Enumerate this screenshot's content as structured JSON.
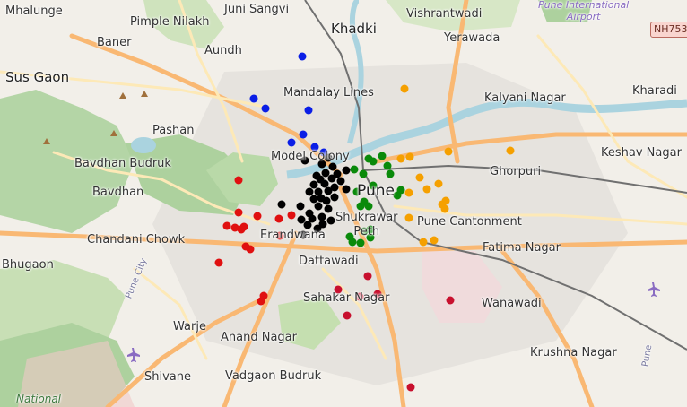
{
  "map": {
    "labels": {
      "mhalunge": "Mhalunge",
      "pimple_nilakh": "Pimple Nilakh",
      "juni_sangvi": "Juni Sangvi",
      "vishrantwadi": "Vishrantwadi",
      "pune_airport": "Pune International\nAirport",
      "baner": "Baner",
      "aundh": "Aundh",
      "khadki": "Khadki",
      "yerawada": "Yerawada",
      "sus_gaon": "Sus Gaon",
      "mandalay_lines": "Mandalay Lines",
      "kalyani_nagar": "Kalyani Nagar",
      "kharadi": "Kharadi",
      "pashan": "Pashan",
      "model_colony": "Model Colony",
      "ghorpuri": "Ghorpuri",
      "keshav_nagar": "Keshav Nagar",
      "bavdhan_budruk": "Bavdhan Budruk",
      "bavdhan": "Bavdhan",
      "pune": "Pune",
      "shukrawar_peth": "Shukrawar\nPeth",
      "pune_cantonment": "Pune Cantonment",
      "chandani_chowk": "Chandani Chowk",
      "erandwana": "Erandwana",
      "fatima_nagar": "Fatima Nagar",
      "bhugaon": "Bhugaon",
      "dattawadi": "Dattawadi",
      "sahakar_nagar": "Sahakar Nagar",
      "wanawadi": "Wanawadi",
      "warje": "Warje",
      "anand_nagar": "Anand Nagar",
      "krushna_nagar": "Krushna Nagar",
      "shivane": "Shivane",
      "vadgaon_budruk": "Vadgaon Budruk",
      "national": "National",
      "pune_city_road": "Pune City",
      "pune_road_right": "Pune"
    },
    "shields": {
      "nh": "NH753"
    },
    "colors": {
      "land": "#f2efe9",
      "park": "#add19e",
      "forest": "#8bc17a",
      "water": "#aad3df",
      "primary_road": "#fcd6a4",
      "secondary_road": "#f7fabf",
      "railway": "#707070",
      "urban": "#e0dfdf",
      "cluster_blue": "#0a1ee6",
      "cluster_black": "#000000",
      "cluster_green": "#0a8a0a",
      "cluster_orange": "#f5a000",
      "cluster_red": "#e01010",
      "cluster_crimson": "#c8102e"
    },
    "icons": [
      "airport-icon",
      "peak-icon",
      "place-dot-icon"
    ]
  },
  "chart_data": {
    "type": "scatter",
    "xlabel": "",
    "ylabel": "",
    "series": [
      {
        "color": "#0a1ee6",
        "points": [
          [
            337,
            63
          ],
          [
            283,
            110
          ],
          [
            296,
            121
          ],
          [
            344,
            123
          ],
          [
            338,
            150
          ],
          [
            325,
            159
          ],
          [
            351,
            164
          ],
          [
            361,
            170
          ]
        ]
      },
      {
        "color": "#000000",
        "points": [
          [
            366,
            176
          ],
          [
            340,
            179
          ],
          [
            359,
            183
          ],
          [
            371,
            186
          ],
          [
            386,
            190
          ],
          [
            376,
            194
          ],
          [
            363,
            193
          ],
          [
            353,
            196
          ],
          [
            357,
            200
          ],
          [
            370,
            199
          ],
          [
            380,
            202
          ],
          [
            350,
            206
          ],
          [
            362,
            205
          ],
          [
            373,
            209
          ],
          [
            345,
            214
          ],
          [
            355,
            214
          ],
          [
            366,
            213
          ],
          [
            386,
            211
          ],
          [
            350,
            222
          ],
          [
            358,
            221
          ],
          [
            364,
            224
          ],
          [
            373,
            220
          ],
          [
            314,
            228
          ],
          [
            335,
            230
          ],
          [
            355,
            230
          ],
          [
            366,
            233
          ],
          [
            345,
            238
          ],
          [
            359,
            242
          ],
          [
            336,
            245
          ],
          [
            348,
            244
          ],
          [
            369,
            246
          ],
          [
            343,
            251
          ],
          [
            360,
            250
          ],
          [
            354,
            255
          ],
          [
            338,
            262
          ]
        ]
      },
      {
        "color": "#0a8a0a",
        "points": [
          [
            395,
            189
          ],
          [
            411,
            177
          ],
          [
            416,
            180
          ],
          [
            426,
            174
          ],
          [
            405,
            194
          ],
          [
            398,
            214
          ],
          [
            416,
            207
          ],
          [
            406,
            225
          ],
          [
            411,
            230
          ],
          [
            402,
            230
          ],
          [
            435,
            194
          ],
          [
            447,
            212
          ],
          [
            443,
            218
          ],
          [
            390,
            264
          ],
          [
            406,
            258
          ],
          [
            413,
            256
          ],
          [
            393,
            270
          ],
          [
            402,
            271
          ],
          [
            413,
            265
          ],
          [
            432,
            185
          ]
        ]
      },
      {
        "color": "#f5a000",
        "points": [
          [
            451,
            99
          ],
          [
            447,
            177
          ],
          [
            457,
            175
          ],
          [
            500,
            169
          ],
          [
            569,
            168
          ],
          [
            468,
            198
          ],
          [
            489,
            205
          ],
          [
            456,
            215
          ],
          [
            476,
            211
          ],
          [
            497,
            224
          ],
          [
            493,
            228
          ],
          [
            496,
            233
          ],
          [
            456,
            243
          ],
          [
            472,
            270
          ],
          [
            484,
            268
          ]
        ]
      },
      {
        "color": "#e01010",
        "points": [
          [
            266,
            201
          ],
          [
            266,
            237
          ],
          [
            287,
            241
          ],
          [
            253,
            252
          ],
          [
            262,
            254
          ],
          [
            269,
            256
          ],
          [
            272,
            253
          ],
          [
            311,
            244
          ],
          [
            325,
            240
          ],
          [
            312,
            263
          ],
          [
            274,
            275
          ],
          [
            279,
            278
          ],
          [
            244,
            293
          ],
          [
            294,
            330
          ],
          [
            291,
            336
          ]
        ]
      },
      {
        "color": "#c8102e",
        "points": [
          [
            410,
            308
          ],
          [
            377,
            323
          ],
          [
            401,
            331
          ],
          [
            421,
            328
          ],
          [
            502,
            335
          ],
          [
            387,
            352
          ],
          [
            458,
            432
          ]
        ]
      }
    ]
  }
}
